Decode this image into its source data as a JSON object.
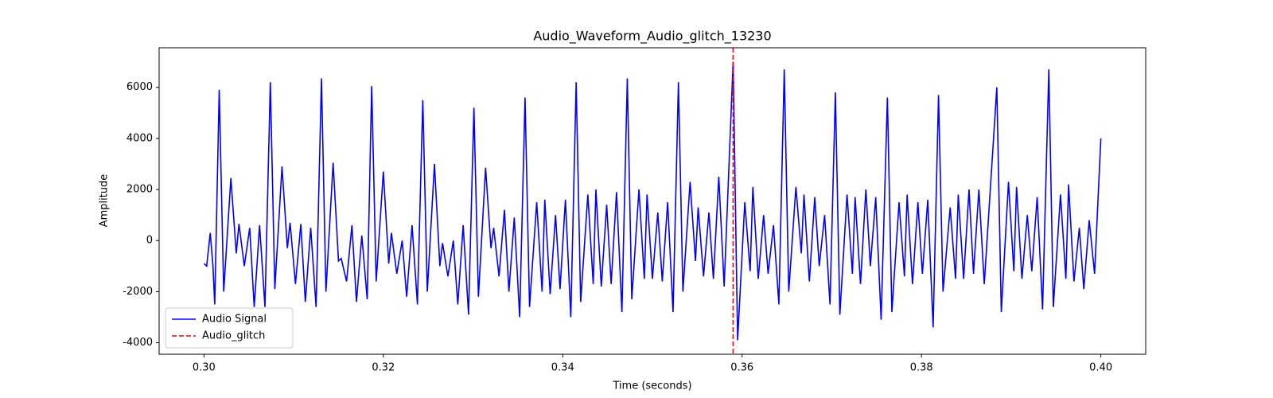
{
  "chart_data": {
    "type": "line",
    "title": "Audio_Waveform_Audio_glitch_13230",
    "xlabel": "Time (seconds)",
    "ylabel": "Amplitude",
    "xlim": [
      0.295,
      0.405
    ],
    "xticks": [
      {
        "value": 0.3,
        "label": "0.30"
      },
      0.32,
      0.34,
      0.36,
      0.38,
      {
        "value": 0.4,
        "label": "0.40"
      }
    ],
    "ylim": [
      -4450,
      7550
    ],
    "yticks": [
      -4000,
      -2000,
      0,
      2000,
      4000,
      6000
    ],
    "legend": "lower left",
    "series": [
      {
        "name": "Audio Signal",
        "color": "#0000ff",
        "x": [
          0.3,
          0.3003,
          0.3007,
          0.301,
          0.3012,
          0.3017,
          0.3022,
          0.303,
          0.3036,
          0.3039,
          0.3045,
          0.3051,
          0.3056,
          0.3062,
          0.3068,
          0.3074,
          0.3079,
          0.3087,
          0.3093,
          0.3096,
          0.3102,
          0.3108,
          0.3113,
          0.3119,
          0.3125,
          0.3131,
          0.3136,
          0.3144,
          0.315,
          0.3153,
          0.3159,
          0.3165,
          0.317,
          0.3176,
          0.3182,
          0.3187,
          0.3192,
          0.32,
          0.3206,
          0.3209,
          0.3215,
          0.3221,
          0.3226,
          0.3232,
          0.3238,
          0.3244,
          0.3249,
          0.3257,
          0.3263,
          0.3266,
          0.3272,
          0.3278,
          0.3283,
          0.3289,
          0.3295,
          0.3301,
          0.3306,
          0.3314,
          0.332,
          0.3323,
          0.3329,
          0.3335,
          0.334,
          0.3346,
          0.3352,
          0.3358,
          0.3363,
          0.3371,
          0.3377,
          0.338,
          0.3386,
          0.3392,
          0.3397,
          0.3403,
          0.3409,
          0.3415,
          0.342,
          0.3428,
          0.3434,
          0.3437,
          0.3443,
          0.3449,
          0.3454,
          0.346,
          0.3466,
          0.3472,
          0.3477,
          0.3485,
          0.3491,
          0.3494,
          0.35,
          0.3506,
          0.3511,
          0.3517,
          0.3523,
          0.3529,
          0.3534,
          0.3542,
          0.3548,
          0.3551,
          0.3557,
          0.3563,
          0.3568,
          0.3574,
          0.358,
          0.359,
          0.3595,
          0.3603,
          0.3609,
          0.3612,
          0.3618,
          0.3624,
          0.3629,
          0.3635,
          0.3641,
          0.3647,
          0.3652,
          0.366,
          0.3666,
          0.3669,
          0.3675,
          0.3681,
          0.3686,
          0.3692,
          0.3698,
          0.3704,
          0.3709,
          0.3717,
          0.3723,
          0.3726,
          0.3732,
          0.3738,
          0.3743,
          0.3749,
          0.3755,
          0.3762,
          0.3767,
          0.3775,
          0.3781,
          0.3784,
          0.379,
          0.3796,
          0.3801,
          0.3807,
          0.3813,
          0.3819,
          0.3824,
          0.3832,
          0.3838,
          0.3841,
          0.3847,
          0.3853,
          0.3858,
          0.3864,
          0.387,
          0.3884,
          0.3889,
          0.3897,
          0.3903,
          0.3906,
          0.3912,
          0.3918,
          0.3923,
          0.3929,
          0.3935,
          0.3942,
          0.3947,
          0.3955,
          0.3961,
          0.3964,
          0.397,
          0.3976,
          0.3981,
          0.3987,
          0.3993,
          0.4
        ],
        "values": [
          -900,
          -1000,
          300,
          -1000,
          -2500,
          5900,
          -2000,
          2450,
          -500,
          650,
          -1000,
          500,
          -2600,
          600,
          -2600,
          6200,
          -1900,
          2900,
          -300,
          700,
          -1700,
          650,
          -2400,
          500,
          -2600,
          6350,
          -2000,
          3050,
          -800,
          -700,
          -1600,
          600,
          -2400,
          200,
          -2300,
          6050,
          -1600,
          2700,
          -900,
          300,
          -1300,
          0,
          -2200,
          600,
          -2500,
          5500,
          -2000,
          3000,
          -1000,
          -100,
          -1400,
          0,
          -2500,
          600,
          -2900,
          5200,
          -2200,
          2850,
          -300,
          500,
          -1400,
          1200,
          -2000,
          900,
          -3000,
          5600,
          -2600,
          1500,
          -2000,
          1600,
          -2100,
          1000,
          -1900,
          1600,
          -3000,
          6200,
          -2400,
          1800,
          -1700,
          2000,
          -1800,
          1400,
          -1700,
          1900,
          -2800,
          6350,
          -2300,
          2000,
          -1500,
          1800,
          -1500,
          1100,
          -1600,
          1500,
          -2800,
          6200,
          -2000,
          2300,
          -800,
          1300,
          -1400,
          1100,
          -1500,
          2500,
          -1800,
          7000,
          -3900,
          1500,
          -1200,
          2100,
          -1500,
          1000,
          -1300,
          600,
          -2500,
          6700,
          -2000,
          2100,
          -500,
          1800,
          -1600,
          1700,
          -1000,
          1000,
          -2500,
          5800,
          -2900,
          1800,
          -1300,
          1700,
          -1700,
          2000,
          -1000,
          1700,
          -3100,
          5600,
          -2800,
          1500,
          -1400,
          1800,
          -1700,
          1500,
          -1300,
          1600,
          -3400,
          5700,
          -2000,
          1300,
          -1500,
          1800,
          -1500,
          2000,
          -1300,
          2000,
          -1700,
          6000,
          -2800,
          2300,
          -1200,
          2100,
          -1500,
          1000,
          -1200,
          1700,
          -2700,
          6700,
          -2600,
          1800,
          -1500,
          2200,
          -1600,
          500,
          -1900,
          800,
          -1300,
          4000
        ]
      }
    ],
    "vlines": [
      {
        "name": "Audio_glitch",
        "x": 0.359,
        "color": "#ff0000"
      }
    ]
  }
}
